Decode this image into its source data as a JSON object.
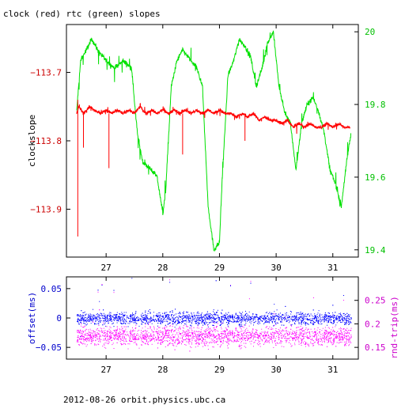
{
  "title": "clock (red) rtc (green) slopes",
  "footer": "2012-08-26 orbit.physics.ubc.ca",
  "colors": {
    "clock": "#ff0000",
    "rtc": "#00e000",
    "offset": "#0000ff",
    "rndtrip": "#ff00ff",
    "axis_left_top": "#cc0000",
    "axis_right_top": "#00c000",
    "axis_left_bottom": "#0000cc",
    "axis_right_bottom": "#cc00cc"
  },
  "chart_data": [
    {
      "type": "line",
      "ylabel": "clockslope",
      "x_ticks": [
        "27",
        "28",
        "29",
        "30",
        "31"
      ],
      "x_tick_values": [
        27,
        28,
        29,
        30,
        31
      ],
      "xlim": [
        26.3,
        31.45
      ],
      "y_left_ticks": [
        "−113.7",
        "−113.8",
        "−113.9"
      ],
      "y_left_tick_values": [
        -113.7,
        -113.8,
        -113.9
      ],
      "ylim_left": [
        -113.97,
        -113.63
      ],
      "y_right_ticks": [
        "20",
        "19.8",
        "19.6",
        "19.4"
      ],
      "y_right_tick_values": [
        20.0,
        19.8,
        19.6,
        19.4
      ],
      "ylim_right": [
        19.38,
        20.02
      ],
      "series": [
        {
          "name": "clock",
          "axis": "left",
          "color": "#ff0000",
          "x": [
            26.48,
            26.52,
            26.6,
            26.7,
            26.8,
            26.9,
            27.0,
            27.1,
            27.2,
            27.3,
            27.4,
            27.5,
            27.6,
            27.7,
            27.8,
            27.9,
            28.0,
            28.1,
            28.2,
            28.3,
            28.4,
            28.5,
            28.6,
            28.7,
            28.8,
            28.9,
            29.0,
            29.1,
            29.2,
            29.3,
            29.4,
            29.5,
            29.6,
            29.7,
            29.8,
            29.9,
            30.0,
            30.1,
            30.2,
            30.3,
            30.4,
            30.5,
            30.6,
            30.7,
            30.8,
            30.9,
            31.0,
            31.1,
            31.2,
            31.3
          ],
          "values": [
            -113.76,
            -113.75,
            -113.76,
            -113.75,
            -113.755,
            -113.76,
            -113.755,
            -113.76,
            -113.755,
            -113.76,
            -113.755,
            -113.76,
            -113.75,
            -113.76,
            -113.755,
            -113.76,
            -113.755,
            -113.76,
            -113.755,
            -113.76,
            -113.755,
            -113.76,
            -113.755,
            -113.76,
            -113.755,
            -113.76,
            -113.755,
            -113.76,
            -113.76,
            -113.765,
            -113.76,
            -113.765,
            -113.76,
            -113.77,
            -113.765,
            -113.77,
            -113.77,
            -113.775,
            -113.77,
            -113.78,
            -113.775,
            -113.78,
            -113.775,
            -113.78,
            -113.78,
            -113.775,
            -113.78,
            -113.775,
            -113.78,
            -113.78
          ]
        },
        {
          "name": "rtc",
          "axis": "right",
          "color": "#00e000",
          "x": [
            26.48,
            26.55,
            26.65,
            26.75,
            26.85,
            27.0,
            27.15,
            27.3,
            27.45,
            27.55,
            27.65,
            27.8,
            27.9,
            28.0,
            28.05,
            28.15,
            28.25,
            28.35,
            28.5,
            28.6,
            28.7,
            28.8,
            28.9,
            29.0,
            29.05,
            29.15,
            29.25,
            29.35,
            29.45,
            29.55,
            29.65,
            29.75,
            29.85,
            29.95,
            30.05,
            30.15,
            30.25,
            30.35,
            30.45,
            30.55,
            30.65,
            30.75,
            30.85,
            30.95,
            31.05,
            31.15,
            31.25,
            31.32
          ],
          "values": [
            19.78,
            19.92,
            19.95,
            19.98,
            19.95,
            19.92,
            19.9,
            19.92,
            19.9,
            19.72,
            19.64,
            19.62,
            19.6,
            19.5,
            19.56,
            19.85,
            19.92,
            19.95,
            19.92,
            19.9,
            19.85,
            19.52,
            19.4,
            19.42,
            19.6,
            19.88,
            19.92,
            19.98,
            19.96,
            19.93,
            19.85,
            19.9,
            19.97,
            20.0,
            19.85,
            19.78,
            19.75,
            19.62,
            19.75,
            19.8,
            19.82,
            19.78,
            19.72,
            19.62,
            19.58,
            19.52,
            19.65,
            19.72
          ]
        }
      ]
    },
    {
      "type": "scatter",
      "ylabel_left": "offset(ms)",
      "ylabel_right": "rnd-trip(ms)",
      "x_ticks": [
        "27",
        "28",
        "29",
        "30",
        "31"
      ],
      "x_tick_values": [
        27,
        28,
        29,
        30,
        31
      ],
      "xlim": [
        26.3,
        31.45
      ],
      "y_left_ticks": [
        "0.05",
        "0",
        "−0.05"
      ],
      "y_left_tick_values": [
        0.05,
        0.0,
        -0.05
      ],
      "ylim_left": [
        -0.07,
        0.07
      ],
      "y_right_ticks": [
        "0.25",
        "0.2",
        "0.15"
      ],
      "y_right_tick_values": [
        0.25,
        0.2,
        0.15
      ],
      "ylim_right": [
        0.125,
        0.3
      ],
      "series": [
        {
          "name": "offset",
          "axis": "left",
          "color": "#0000ff",
          "x_range": [
            26.48,
            31.32
          ],
          "center": 0.0,
          "spread": 0.018
        },
        {
          "name": "rnd-trip",
          "axis": "right",
          "color": "#ff00ff",
          "x_range": [
            26.48,
            31.32
          ],
          "center": 0.175,
          "spread": 0.035
        }
      ]
    }
  ]
}
